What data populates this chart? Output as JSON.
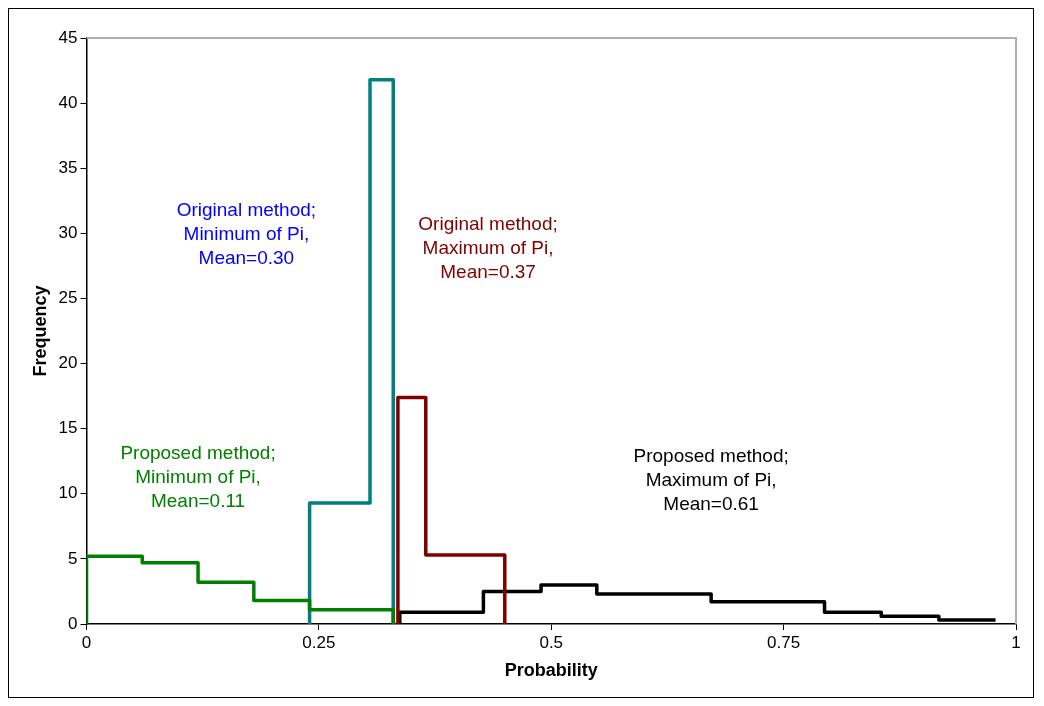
{
  "chart_data": {
    "type": "step",
    "xlabel": "Probability",
    "ylabel": "Frequency",
    "xlim": [
      0,
      1
    ],
    "xticks": [
      0,
      0.25,
      0.5,
      0.75,
      1
    ],
    "ylim": [
      0,
      45
    ],
    "yticks": [
      0,
      5,
      10,
      15,
      20,
      25,
      30,
      35,
      40,
      45
    ],
    "grid": false,
    "legend": false,
    "series": [
      {
        "name": "Proposed method;\nMinimum of Pi,\nMean=0.11",
        "color": "#008000",
        "x": [
          0,
          0,
          0.06,
          0.12,
          0.18,
          0.24,
          0.33
        ],
        "values": [
          0,
          5.2,
          4.7,
          3.2,
          1.8,
          1.1,
          0
        ]
      },
      {
        "name": "Original method;\nMinimum of Pi,\nMean=0.30",
        "color": "#008080",
        "x": [
          0.24,
          0.24,
          0.305,
          0.33
        ],
        "values": [
          0,
          9.3,
          41.8,
          0
        ]
      },
      {
        "name": "Original method;\nMaximum of Pi,\nMean=0.37",
        "color": "#800000",
        "x": [
          0.335,
          0.335,
          0.365,
          0.45
        ],
        "values": [
          0,
          17.4,
          5.3,
          0
        ]
      },
      {
        "name": "Proposed method;\nMaximum of Pi,\nMean=0.61",
        "color": "#000000",
        "x": [
          0.337,
          0.337,
          0.427,
          0.489,
          0.549,
          0.672,
          0.794,
          0.855,
          0.917,
          0.978
        ],
        "values": [
          0,
          0.9,
          2.5,
          3.0,
          2.3,
          1.7,
          0.9,
          0.6,
          0.3,
          0.3
        ]
      }
    ]
  }
}
